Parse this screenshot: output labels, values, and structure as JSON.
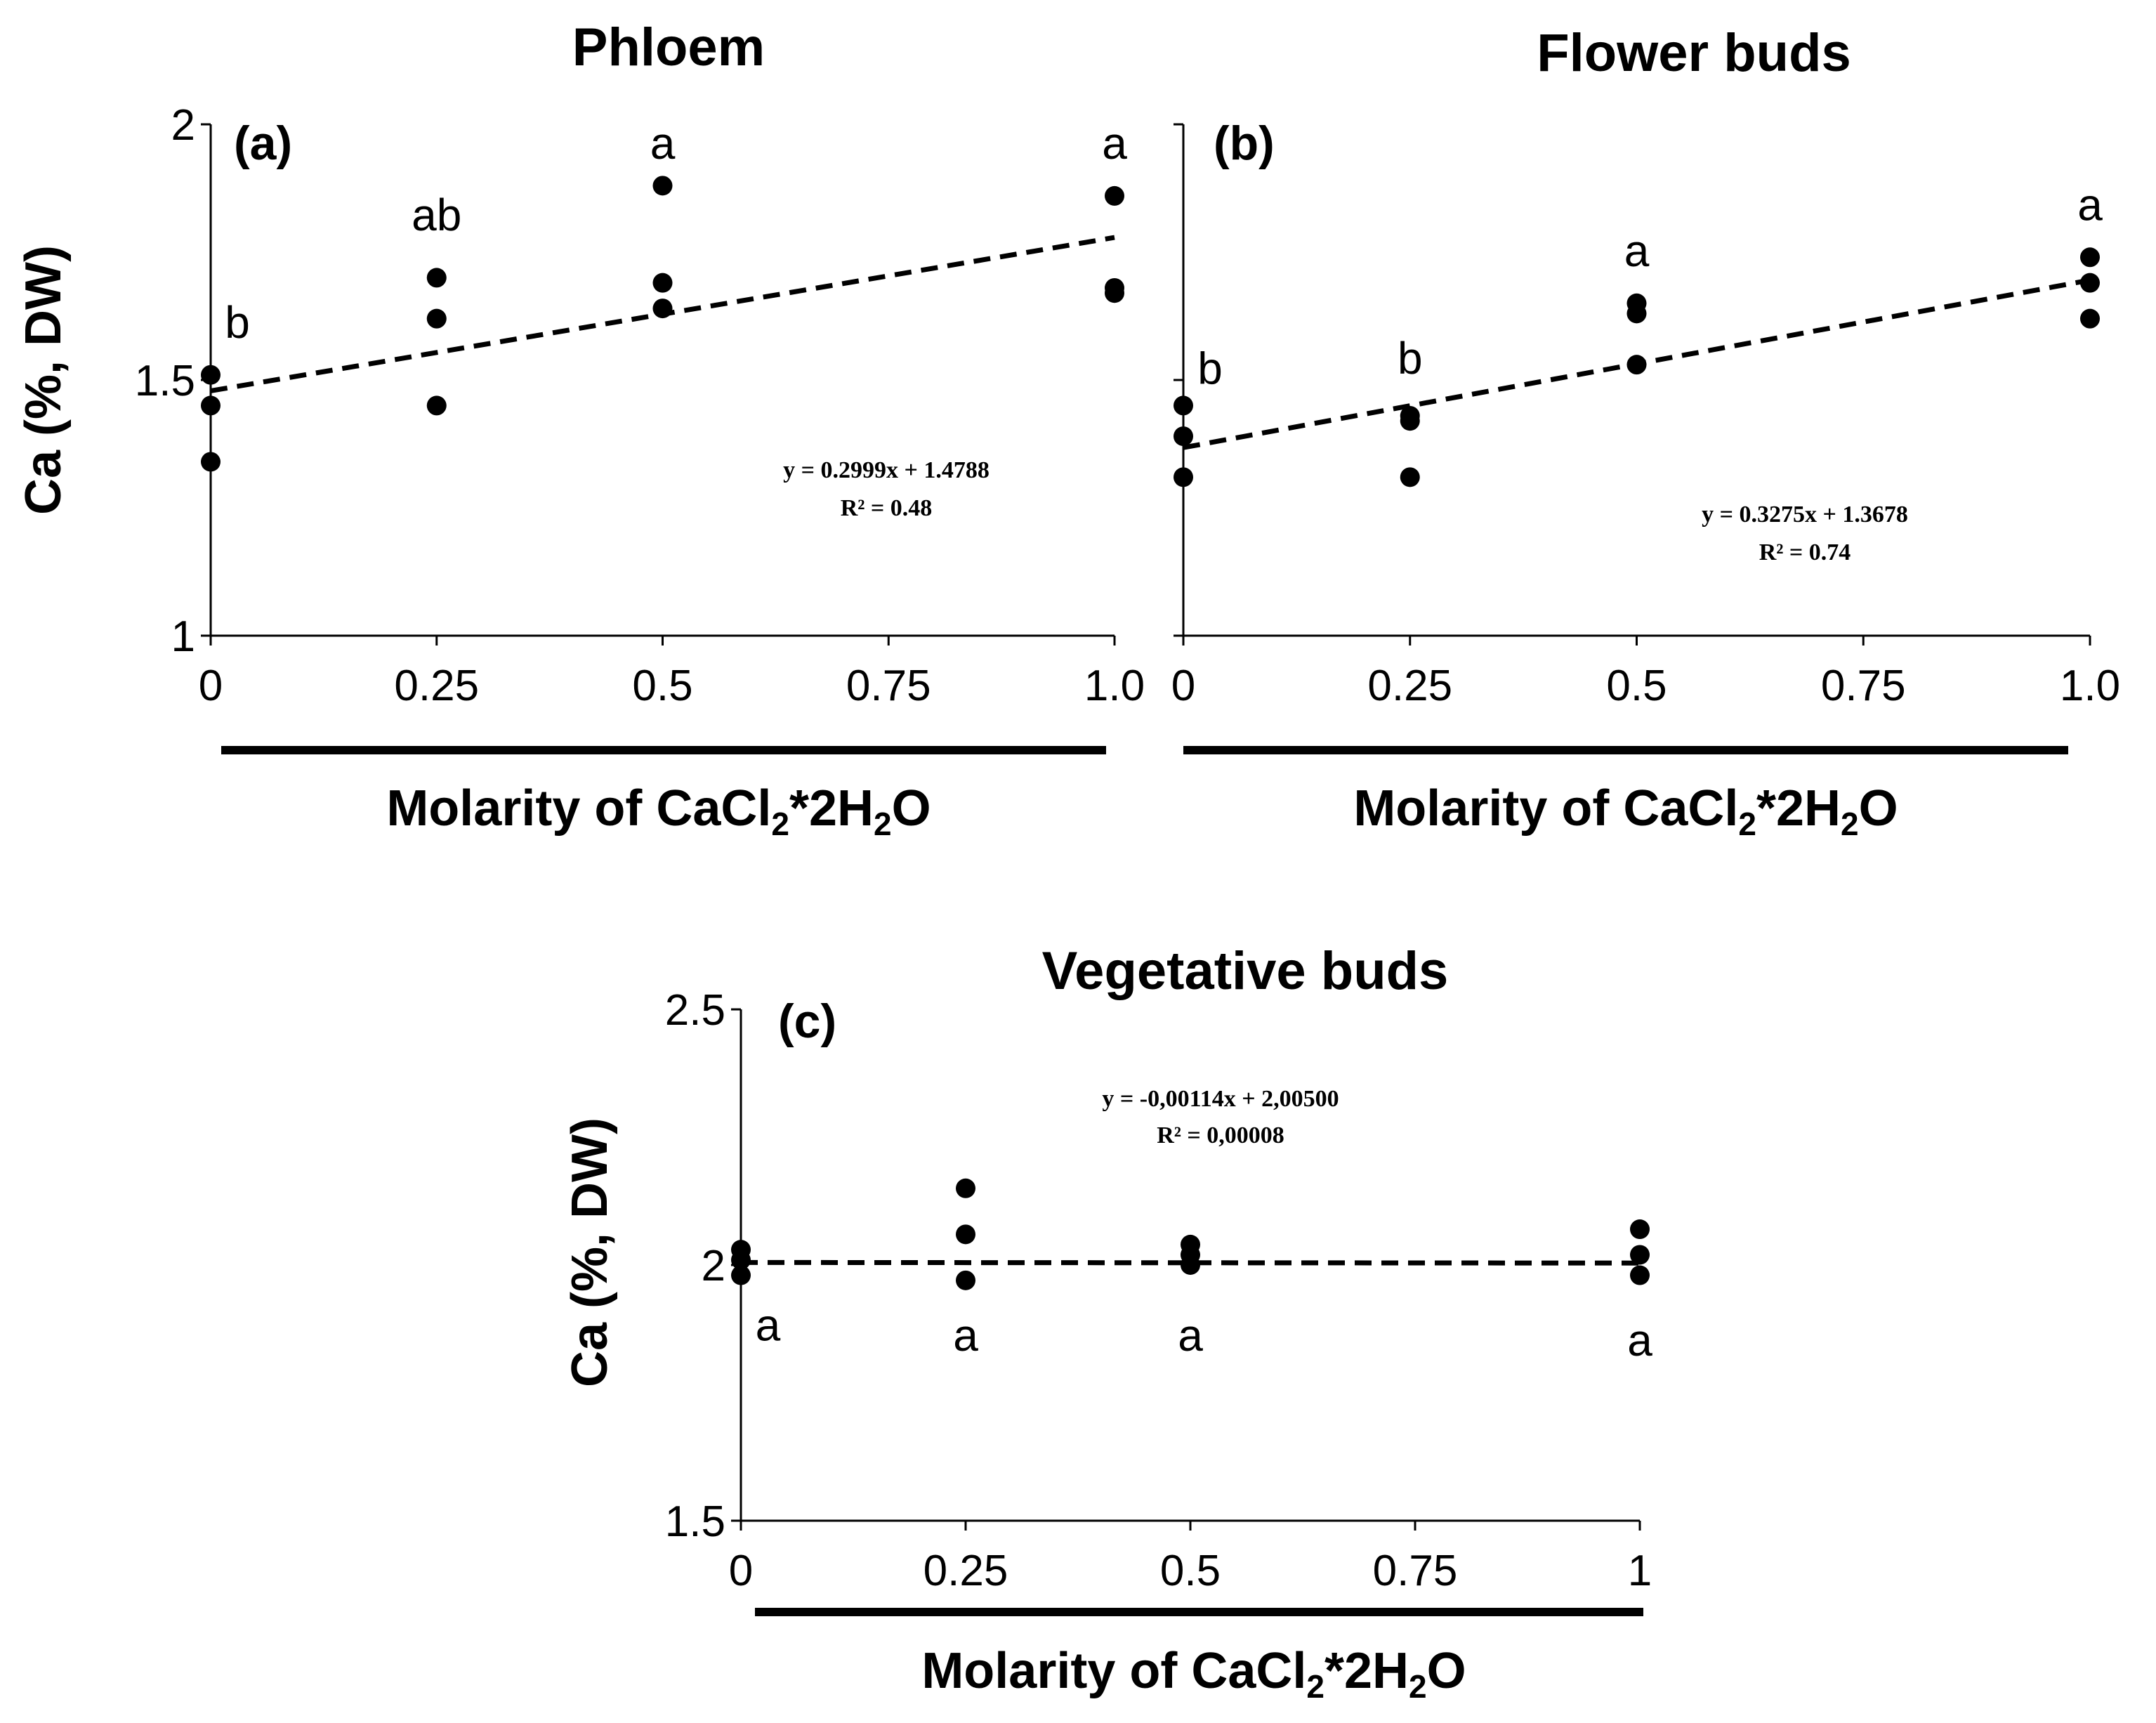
{
  "chart_data": [
    {
      "type": "scatter",
      "panel_label": "(a)",
      "title": "Phloem",
      "ylabel": "Ca (%, DW)",
      "xlabel": {
        "pre": "Molarity of CaCl",
        "sub1": "2",
        "mid": "*2H",
        "sub2": "2",
        "post": "O"
      },
      "ylim": [
        1,
        2
      ],
      "yticks": [
        "1",
        "1.5",
        "2"
      ],
      "ytick_values": [
        1,
        1.5,
        2
      ],
      "xticks": [
        "0",
        "0.25",
        "0.5",
        "0.75",
        "1.0"
      ],
      "xtick_values": [
        0,
        0.25,
        0.5,
        0.75,
        1
      ],
      "x": [
        0,
        0,
        0,
        0.25,
        0.25,
        0.25,
        0.5,
        0.5,
        0.5,
        1,
        1,
        1
      ],
      "y": [
        1.51,
        1.45,
        1.34,
        1.7,
        1.62,
        1.45,
        1.88,
        1.69,
        1.64,
        1.86,
        1.68,
        1.67
      ],
      "group_letters": [
        {
          "x": 0,
          "y": 1.61,
          "text": "b"
        },
        {
          "x": 0.25,
          "y": 1.82,
          "text": "ab"
        },
        {
          "x": 0.5,
          "y": 1.96,
          "text": "a"
        },
        {
          "x": 1,
          "y": 1.96,
          "text": "a"
        }
      ],
      "trendline": {
        "slope": 0.2999,
        "intercept": 1.4788,
        "style": "dashed"
      },
      "equation": "y = 0.2999x + 1.4788",
      "r2": "R² = 0.48"
    },
    {
      "type": "scatter",
      "panel_label": "(b)",
      "title": "Flower buds",
      "xlabel": {
        "pre": "Molarity of CaCl",
        "sub1": "2",
        "mid": "*2H",
        "sub2": "2",
        "post": "O"
      },
      "ylim": [
        1,
        2
      ],
      "xticks": [
        "0",
        "0.25",
        "0.5",
        "0.75",
        "1.0"
      ],
      "xtick_values": [
        0,
        0.25,
        0.5,
        0.75,
        1
      ],
      "x": [
        0,
        0,
        0,
        0.25,
        0.25,
        0.25,
        0.5,
        0.5,
        0.5,
        1,
        1,
        1
      ],
      "y": [
        1.45,
        1.39,
        1.31,
        1.43,
        1.42,
        1.31,
        1.65,
        1.63,
        1.53,
        1.74,
        1.69,
        1.62
      ],
      "group_letters": [
        {
          "x": 0,
          "y": 1.52,
          "text": "b"
        },
        {
          "x": 0.25,
          "y": 1.54,
          "text": "b"
        },
        {
          "x": 0.5,
          "y": 1.75,
          "text": "a"
        },
        {
          "x": 1,
          "y": 1.84,
          "text": "a"
        }
      ],
      "trendline": {
        "slope": 0.3275,
        "intercept": 1.3678,
        "style": "dashed"
      },
      "equation": "y = 0.3275x + 1.3678",
      "r2": "R² = 0.74"
    },
    {
      "type": "scatter",
      "panel_label": "(c)",
      "title": "Vegetative buds",
      "ylabel": "Ca (%, DW)",
      "xlabel": {
        "pre": "Molarity of CaCl",
        "sub1": "2",
        "mid": "*2H",
        "sub2": "2",
        "post": "O"
      },
      "ylim": [
        1.5,
        2.5
      ],
      "yticks": [
        "1.5",
        "2",
        "2.5"
      ],
      "ytick_values": [
        1.5,
        2,
        2.5
      ],
      "xticks": [
        "0",
        "0.25",
        "0.5",
        "0.75",
        "1"
      ],
      "xtick_values": [
        0,
        0.25,
        0.5,
        0.75,
        1
      ],
      "x": [
        0,
        0,
        0,
        0.25,
        0.25,
        0.25,
        0.5,
        0.5,
        0.5,
        1,
        1,
        1
      ],
      "y": [
        2.03,
        2.01,
        1.98,
        2.15,
        2.06,
        1.97,
        2.04,
        2.02,
        2.0,
        2.07,
        2.02,
        1.98
      ],
      "group_letters": [
        {
          "x": 0.03,
          "y": 1.88,
          "text": "a"
        },
        {
          "x": 0.25,
          "y": 1.86,
          "text": "a"
        },
        {
          "x": 0.5,
          "y": 1.86,
          "text": "a"
        },
        {
          "x": 1,
          "y": 1.85,
          "text": "a"
        }
      ],
      "trendline": {
        "slope": -0.00114,
        "intercept": 2.005,
        "style": "dashed"
      },
      "equation": "y = -0,00114x + 2,00500",
      "r2": "R² = 0,00008"
    }
  ]
}
